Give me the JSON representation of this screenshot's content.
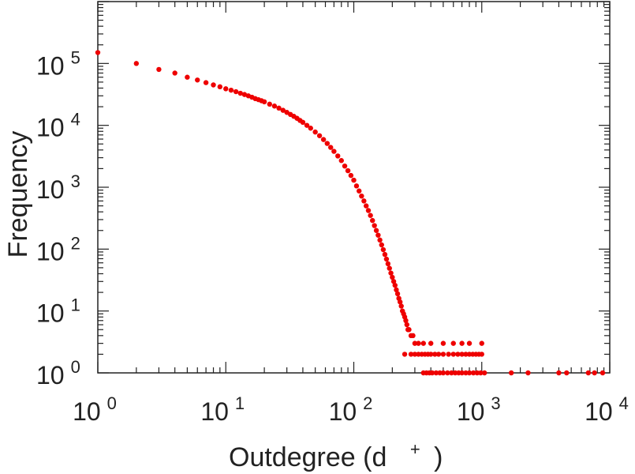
{
  "chart_data": {
    "type": "scatter",
    "title": "",
    "xlabel": {
      "main": "Outdegree (d",
      "superscript": "+",
      "close": ")"
    },
    "ylabel": "Frequency",
    "xscale": "log",
    "yscale": "log",
    "xlim": [
      1,
      10000
    ],
    "ylim": [
      1,
      1000000
    ],
    "grid": false,
    "marker_color": "#ee0000",
    "x_ticks": [
      {
        "base": "10",
        "exp": "0"
      },
      {
        "base": "10",
        "exp": "1"
      },
      {
        "base": "10",
        "exp": "2"
      },
      {
        "base": "10",
        "exp": "3"
      },
      {
        "base": "10",
        "exp": "4"
      }
    ],
    "y_ticks": [
      {
        "base": "10",
        "exp": "0"
      },
      {
        "base": "10",
        "exp": "1"
      },
      {
        "base": "10",
        "exp": "2"
      },
      {
        "base": "10",
        "exp": "3"
      },
      {
        "base": "10",
        "exp": "4"
      },
      {
        "base": "10",
        "exp": "5"
      }
    ],
    "series": [
      {
        "points": [
          [
            1,
            150000
          ],
          [
            2,
            100000
          ],
          [
            3,
            80000
          ],
          [
            4,
            70000
          ],
          [
            5,
            60000
          ],
          [
            6,
            54000
          ],
          [
            7,
            49000
          ],
          [
            8,
            45000
          ],
          [
            9,
            42000
          ],
          [
            10,
            39000
          ],
          [
            11,
            37000
          ],
          [
            12,
            35000
          ],
          [
            13,
            33000
          ],
          [
            14,
            31500
          ],
          [
            15,
            30000
          ],
          [
            16,
            28500
          ],
          [
            17,
            27000
          ],
          [
            18,
            26000
          ],
          [
            19,
            25000
          ],
          [
            20,
            24000
          ],
          [
            22,
            22000
          ],
          [
            24,
            20500
          ],
          [
            26,
            19000
          ],
          [
            28,
            17500
          ],
          [
            30,
            16200
          ],
          [
            32,
            15000
          ],
          [
            34,
            14000
          ],
          [
            36,
            13000
          ],
          [
            38,
            12000
          ],
          [
            40,
            11200
          ],
          [
            43,
            10000
          ],
          [
            46,
            9000
          ],
          [
            50,
            7800
          ],
          [
            54,
            6800
          ],
          [
            58,
            5900
          ],
          [
            62,
            5100
          ],
          [
            66,
            4400
          ],
          [
            70,
            3800
          ],
          [
            75,
            3200
          ],
          [
            80,
            2700
          ],
          [
            85,
            2200
          ],
          [
            90,
            1850
          ],
          [
            95,
            1550
          ],
          [
            100,
            1300
          ],
          [
            105,
            1050
          ],
          [
            110,
            870
          ],
          [
            115,
            720
          ],
          [
            120,
            600
          ],
          [
            125,
            500
          ],
          [
            130,
            420
          ],
          [
            135,
            350
          ],
          [
            140,
            290
          ],
          [
            145,
            240
          ],
          [
            150,
            200
          ],
          [
            155,
            168
          ],
          [
            160,
            140
          ],
          [
            165,
            117
          ],
          [
            170,
            98
          ],
          [
            175,
            82
          ],
          [
            180,
            69
          ],
          [
            185,
            58
          ],
          [
            190,
            49
          ],
          [
            195,
            41
          ],
          [
            200,
            35
          ],
          [
            205,
            30
          ],
          [
            210,
            26
          ],
          [
            215,
            22
          ],
          [
            220,
            19
          ],
          [
            225,
            16
          ],
          [
            230,
            14
          ],
          [
            235,
            12
          ],
          [
            240,
            10
          ],
          [
            245,
            9
          ],
          [
            250,
            8
          ],
          [
            255,
            7
          ],
          [
            260,
            6
          ],
          [
            265,
            5
          ],
          [
            270,
            5
          ],
          [
            280,
            4
          ],
          [
            290,
            4
          ],
          [
            300,
            3
          ],
          [
            320,
            3
          ],
          [
            350,
            3
          ],
          [
            400,
            3
          ],
          [
            500,
            3
          ],
          [
            600,
            3
          ],
          [
            700,
            3
          ],
          [
            800,
            3
          ],
          [
            1000,
            3
          ],
          [
            250,
            2
          ],
          [
            280,
            2
          ],
          [
            300,
            2
          ],
          [
            320,
            2
          ],
          [
            340,
            2
          ],
          [
            360,
            2
          ],
          [
            380,
            2
          ],
          [
            400,
            2
          ],
          [
            430,
            2
          ],
          [
            460,
            2
          ],
          [
            500,
            2
          ],
          [
            550,
            2
          ],
          [
            600,
            2
          ],
          [
            650,
            2
          ],
          [
            700,
            2
          ],
          [
            750,
            2
          ],
          [
            800,
            2
          ],
          [
            850,
            2
          ],
          [
            900,
            2
          ],
          [
            950,
            2
          ],
          [
            1000,
            2
          ],
          [
            350,
            1
          ],
          [
            370,
            1
          ],
          [
            390,
            1
          ],
          [
            410,
            1
          ],
          [
            440,
            1
          ],
          [
            470,
            1
          ],
          [
            500,
            1
          ],
          [
            540,
            1
          ],
          [
            580,
            1
          ],
          [
            620,
            1
          ],
          [
            660,
            1
          ],
          [
            700,
            1
          ],
          [
            750,
            1
          ],
          [
            800,
            1
          ],
          [
            860,
            1
          ],
          [
            920,
            1
          ],
          [
            980,
            1
          ],
          [
            1050,
            1
          ],
          [
            1700,
            1
          ],
          [
            2300,
            1
          ],
          [
            4000,
            1
          ],
          [
            4600,
            1
          ],
          [
            6800,
            1
          ],
          [
            7600,
            1
          ],
          [
            8800,
            1
          ]
        ]
      }
    ]
  }
}
